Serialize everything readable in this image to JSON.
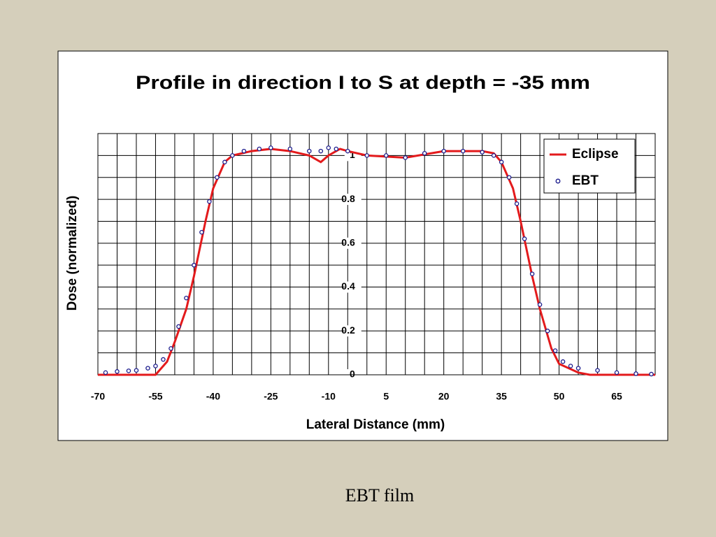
{
  "chart_data": {
    "type": "line",
    "title": "Profile in direction I to S at depth = -35 mm",
    "xlabel": "Lateral Distance (mm)",
    "ylabel": "Dose (normalized)",
    "caption": "EBT film",
    "xlim": [
      -70,
      75
    ],
    "ylim": [
      0,
      1.1
    ],
    "xticks": [
      -70,
      -55,
      -40,
      -25,
      -10,
      5,
      20,
      35,
      50,
      65
    ],
    "yticks": [
      0,
      0.2,
      0.4,
      0.6,
      0.8,
      1
    ],
    "minor_xticks": [
      -65,
      -60,
      -50,
      -45,
      -35,
      -30,
      -20,
      -15,
      -5,
      0,
      10,
      15,
      25,
      30,
      40,
      45,
      55,
      60,
      70,
      75
    ],
    "minor_yticks": [
      0.1,
      0.3,
      0.5,
      0.7,
      0.9,
      1.1
    ],
    "grid": true,
    "legend": "upper right",
    "series": [
      {
        "name": "Eclipse",
        "color": "#e31a1c",
        "style": "line",
        "x": [
          -70,
          -55,
          -52,
          -50,
          -47,
          -45,
          -42,
          -40,
          -37,
          -35,
          -30,
          -25,
          -20,
          -15,
          -12,
          -10,
          -7,
          -5,
          0,
          10,
          20,
          30,
          33,
          35,
          38,
          40,
          43,
          45,
          48,
          50,
          55,
          58,
          75
        ],
        "values": [
          0,
          0,
          0.06,
          0.15,
          0.3,
          0.45,
          0.7,
          0.85,
          0.97,
          1.0,
          1.02,
          1.03,
          1.02,
          1.0,
          0.97,
          1.0,
          1.03,
          1.02,
          1.0,
          0.99,
          1.02,
          1.02,
          1.01,
          0.97,
          0.85,
          0.7,
          0.45,
          0.3,
          0.12,
          0.05,
          0.01,
          0,
          0
        ]
      },
      {
        "name": "EBT",
        "color": "#1a1a8c",
        "style": "points",
        "x": [
          -68,
          -65,
          -62,
          -60,
          -57,
          -55,
          -53,
          -51,
          -49,
          -47,
          -45,
          -43,
          -41,
          -39,
          -37,
          -35,
          -32,
          -28,
          -25,
          -20,
          -15,
          -12,
          -10,
          -8,
          -5,
          0,
          5,
          10,
          15,
          20,
          25,
          30,
          33,
          35,
          37,
          39,
          41,
          43,
          45,
          47,
          49,
          51,
          53,
          55,
          60,
          65,
          70,
          74
        ],
        "values": [
          0.01,
          0.015,
          0.018,
          0.02,
          0.03,
          0.04,
          0.07,
          0.12,
          0.22,
          0.35,
          0.5,
          0.65,
          0.79,
          0.9,
          0.97,
          1.0,
          1.02,
          1.03,
          1.035,
          1.03,
          1.02,
          1.02,
          1.035,
          1.03,
          1.02,
          1.0,
          1.0,
          0.99,
          1.01,
          1.02,
          1.02,
          1.015,
          1.0,
          0.97,
          0.9,
          0.78,
          0.62,
          0.46,
          0.32,
          0.2,
          0.11,
          0.06,
          0.04,
          0.03,
          0.02,
          0.01,
          0.005,
          0.003
        ]
      }
    ]
  }
}
